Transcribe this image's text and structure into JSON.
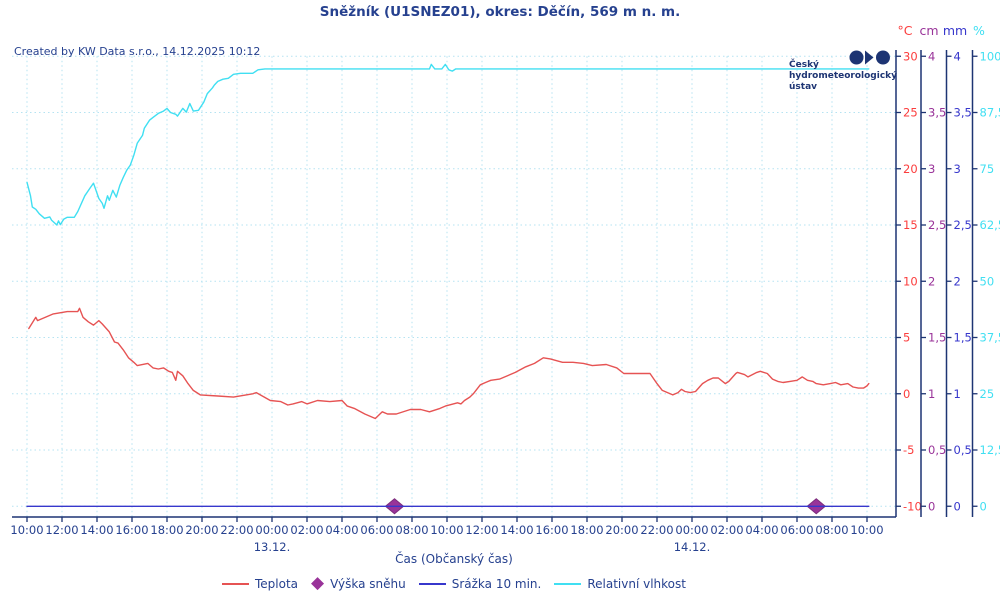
{
  "header": {
    "title": "Sněžník (U1SNEZ01), okres: Děčín, 569 m n. m.",
    "created": "Created by KW Data s.r.o., 14.12.2025 10:12",
    "logo_line1": "Český",
    "logo_line2": "hydrometeorologický",
    "logo_line3": "ústav"
  },
  "colors": {
    "navy_text": "#26418f",
    "navy_line": "#1d3473",
    "grid": "#b5e3f2",
    "temperature": "#e65353",
    "temperature_label": "#fb3d3d",
    "snow": "#993399",
    "snow_edge": "#7c2d7c",
    "precip": "#3737cc",
    "humidity": "#40dff2"
  },
  "right_axes": [
    {
      "unit": "°C",
      "tick_labels": [
        "30",
        "25",
        "20",
        "15",
        "10",
        "5",
        "0",
        "-5",
        "-10"
      ],
      "color": "#fb3d3d"
    },
    {
      "unit": "cm",
      "tick_labels": [
        "4",
        "3,5",
        "3",
        "2,5",
        "2",
        "1,5",
        "1",
        "0,5",
        "0"
      ],
      "color": "#993399"
    },
    {
      "unit": "mm",
      "tick_labels": [
        "4",
        "3,5",
        "3",
        "2,5",
        "2",
        "1,5",
        "1",
        "0,5",
        "0"
      ],
      "color": "#3737cc"
    },
    {
      "unit": "%",
      "tick_labels": [
        "100",
        "87,5",
        "75",
        "62,5",
        "50",
        "37,5",
        "25",
        "12,5",
        "0"
      ],
      "color": "#40dff2"
    }
  ],
  "xaxis": {
    "label": "Čas (Občanský čas)",
    "tick_labels": [
      "10:00",
      "12:00",
      "14:00",
      "16:00",
      "18:00",
      "20:00",
      "22:00",
      "00:00",
      "02:00",
      "04:00",
      "06:00",
      "08:00",
      "10:00",
      "12:00",
      "14:00",
      "16:00",
      "18:00",
      "20:00",
      "22:00",
      "00:00",
      "02:00",
      "04:00",
      "06:00",
      "08:00",
      "10:00"
    ],
    "day_labels": [
      {
        "text": "13.12.",
        "tick_index": 7
      },
      {
        "text": "14.12.",
        "tick_index": 19
      }
    ]
  },
  "legend": {
    "items": [
      {
        "label": "Teplota",
        "marker": "line",
        "color": "#e65353"
      },
      {
        "label": "Výška sněhu",
        "marker": "diamond",
        "color": "#993399"
      },
      {
        "label": "Srážka 10 min.",
        "marker": "line",
        "color": "#3737cc"
      },
      {
        "label": "Relativní vlhkost",
        "marker": "line",
        "color": "#40dff2"
      }
    ]
  },
  "chart_data": {
    "type": "line",
    "title": "Sněžník (U1SNEZ01), okres: Děčín, 569 m n. m.",
    "x_description": "hours after first tick (10:00 of first day); ticks every 2 h, two midnights at indices 7 (13.12.) and 19 (14.12.)",
    "x_range_hours": [
      0,
      48.2
    ],
    "grid": true,
    "legend_position": "bottom",
    "series": [
      {
        "name": "Teplota",
        "unit": "°C",
        "color": "#e65353",
        "type": "line",
        "axis_min": -10,
        "axis_max": 30,
        "points": [
          [
            0.1,
            5.8
          ],
          [
            0.5,
            6.8
          ],
          [
            0.6,
            6.5
          ],
          [
            1.5,
            7.1
          ],
          [
            2.3,
            7.3
          ],
          [
            2.9,
            7.3
          ],
          [
            3.0,
            7.6
          ],
          [
            3.2,
            6.8
          ],
          [
            3.5,
            6.4
          ],
          [
            3.8,
            6.1
          ],
          [
            4.1,
            6.5
          ],
          [
            4.3,
            6.2
          ],
          [
            4.7,
            5.5
          ],
          [
            5.0,
            4.6
          ],
          [
            5.2,
            4.5
          ],
          [
            5.5,
            3.9
          ],
          [
            5.8,
            3.2
          ],
          [
            6.1,
            2.8
          ],
          [
            6.3,
            2.5
          ],
          [
            6.9,
            2.7
          ],
          [
            7.2,
            2.3
          ],
          [
            7.5,
            2.2
          ],
          [
            7.8,
            2.3
          ],
          [
            8.1,
            2.0
          ],
          [
            8.3,
            1.9
          ],
          [
            8.5,
            1.2
          ],
          [
            8.6,
            2.0
          ],
          [
            8.9,
            1.6
          ],
          [
            9.2,
            0.9
          ],
          [
            9.5,
            0.3
          ],
          [
            9.9,
            -0.1
          ],
          [
            10.9,
            -0.2
          ],
          [
            11.8,
            -0.3
          ],
          [
            12.9,
            0.0
          ],
          [
            13.1,
            0.1
          ],
          [
            13.9,
            -0.6
          ],
          [
            14.5,
            -0.7
          ],
          [
            14.9,
            -1.0
          ],
          [
            15.2,
            -0.9
          ],
          [
            15.7,
            -0.7
          ],
          [
            16.0,
            -0.9
          ],
          [
            16.6,
            -0.6
          ],
          [
            17.3,
            -0.7
          ],
          [
            18.0,
            -0.6
          ],
          [
            18.3,
            -1.1
          ],
          [
            18.7,
            -1.3
          ],
          [
            19.3,
            -1.8
          ],
          [
            19.9,
            -2.2
          ],
          [
            20.3,
            -1.6
          ],
          [
            20.6,
            -1.8
          ],
          [
            21.1,
            -1.8
          ],
          [
            21.9,
            -1.4
          ],
          [
            22.5,
            -1.4
          ],
          [
            23.0,
            -1.6
          ],
          [
            23.6,
            -1.3
          ],
          [
            23.9,
            -1.1
          ],
          [
            24.6,
            -0.8
          ],
          [
            24.8,
            -0.9
          ],
          [
            25.0,
            -0.6
          ],
          [
            25.3,
            -0.3
          ],
          [
            25.5,
            0.0
          ],
          [
            25.9,
            0.8
          ],
          [
            26.2,
            1.0
          ],
          [
            26.5,
            1.2
          ],
          [
            27.0,
            1.3
          ],
          [
            27.3,
            1.5
          ],
          [
            27.9,
            1.9
          ],
          [
            28.5,
            2.4
          ],
          [
            29.0,
            2.7
          ],
          [
            29.5,
            3.2
          ],
          [
            29.9,
            3.1
          ],
          [
            30.6,
            2.8
          ],
          [
            31.2,
            2.8
          ],
          [
            31.8,
            2.7
          ],
          [
            32.3,
            2.5
          ],
          [
            33.1,
            2.6
          ],
          [
            33.7,
            2.3
          ],
          [
            34.1,
            1.8
          ],
          [
            34.5,
            1.8
          ],
          [
            35.6,
            1.8
          ],
          [
            36.0,
            0.9
          ],
          [
            36.3,
            0.3
          ],
          [
            36.9,
            -0.1
          ],
          [
            37.2,
            0.1
          ],
          [
            37.4,
            0.4
          ],
          [
            37.6,
            0.2
          ],
          [
            37.9,
            0.1
          ],
          [
            38.2,
            0.2
          ],
          [
            38.6,
            0.9
          ],
          [
            38.9,
            1.2
          ],
          [
            39.2,
            1.4
          ],
          [
            39.5,
            1.4
          ],
          [
            39.9,
            0.9
          ],
          [
            40.1,
            1.1
          ],
          [
            40.5,
            1.8
          ],
          [
            40.6,
            1.9
          ],
          [
            41.0,
            1.7
          ],
          [
            41.2,
            1.5
          ],
          [
            41.7,
            1.9
          ],
          [
            41.9,
            2.0
          ],
          [
            42.3,
            1.8
          ],
          [
            42.6,
            1.3
          ],
          [
            42.9,
            1.1
          ],
          [
            43.2,
            1.0
          ],
          [
            43.6,
            1.1
          ],
          [
            44.0,
            1.2
          ],
          [
            44.3,
            1.5
          ],
          [
            44.6,
            1.2
          ],
          [
            44.9,
            1.1
          ],
          [
            45.1,
            0.9
          ],
          [
            45.5,
            0.8
          ],
          [
            45.9,
            0.9
          ],
          [
            46.2,
            1.0
          ],
          [
            46.5,
            0.8
          ],
          [
            46.9,
            0.9
          ],
          [
            47.2,
            0.6
          ],
          [
            47.5,
            0.5
          ],
          [
            47.8,
            0.5
          ],
          [
            48.0,
            0.7
          ],
          [
            48.1,
            0.9
          ]
        ]
      },
      {
        "name": "Výška sněhu",
        "unit": "cm",
        "color": "#993399",
        "type": "scatter-diamond",
        "axis_min": 0,
        "axis_max": 4,
        "points": [
          [
            21.0,
            0
          ],
          [
            45.1,
            0
          ]
        ]
      },
      {
        "name": "Srážka 10 min.",
        "unit": "mm",
        "color": "#3737cc",
        "type": "line",
        "axis_min": 0,
        "axis_max": 4,
        "points": [
          [
            0.0,
            0
          ],
          [
            48.1,
            0
          ]
        ]
      },
      {
        "name": "Relativní vlhkost",
        "unit": "%",
        "color": "#40dff2",
        "type": "line",
        "axis_min": 0,
        "axis_max": 100,
        "points": [
          [
            0.0,
            72
          ],
          [
            0.2,
            69
          ],
          [
            0.3,
            66.5
          ],
          [
            0.5,
            66
          ],
          [
            0.7,
            65
          ],
          [
            1.0,
            64
          ],
          [
            1.3,
            64.3
          ],
          [
            1.4,
            63.6
          ],
          [
            1.7,
            62.5
          ],
          [
            1.8,
            63.4
          ],
          [
            1.9,
            62.6
          ],
          [
            2.1,
            63.8
          ],
          [
            2.3,
            64.2
          ],
          [
            2.7,
            64.2
          ],
          [
            2.9,
            65.5
          ],
          [
            3.3,
            69
          ],
          [
            3.6,
            70.7
          ],
          [
            3.8,
            71.8
          ],
          [
            4.1,
            68.4
          ],
          [
            4.3,
            67.3
          ],
          [
            4.4,
            66.2
          ],
          [
            4.6,
            69
          ],
          [
            4.7,
            68
          ],
          [
            4.9,
            70.2
          ],
          [
            5.1,
            68.7
          ],
          [
            5.3,
            71.3
          ],
          [
            5.5,
            73.1
          ],
          [
            5.7,
            74.7
          ],
          [
            5.9,
            75.8
          ],
          [
            6.1,
            78
          ],
          [
            6.3,
            80.7
          ],
          [
            6.6,
            82.4
          ],
          [
            6.7,
            84
          ],
          [
            7.0,
            85.8
          ],
          [
            7.2,
            86.4
          ],
          [
            7.5,
            87.3
          ],
          [
            7.8,
            87.8
          ],
          [
            8.0,
            88.4
          ],
          [
            8.2,
            87.5
          ],
          [
            8.5,
            87.1
          ],
          [
            8.6,
            86.7
          ],
          [
            8.9,
            88.4
          ],
          [
            9.1,
            87.6
          ],
          [
            9.3,
            89.5
          ],
          [
            9.5,
            87.8
          ],
          [
            9.8,
            88
          ],
          [
            10.1,
            89.8
          ],
          [
            10.3,
            91.7
          ],
          [
            10.6,
            93
          ],
          [
            10.7,
            93.6
          ],
          [
            10.9,
            94.4
          ],
          [
            11.2,
            94.9
          ],
          [
            11.5,
            95.1
          ],
          [
            11.8,
            96
          ],
          [
            12.2,
            96.2
          ],
          [
            12.9,
            96.2
          ],
          [
            13.2,
            97
          ],
          [
            13.6,
            97.2
          ],
          [
            23.0,
            97.2
          ],
          [
            23.1,
            98.2
          ],
          [
            23.3,
            97.2
          ],
          [
            23.7,
            97.2
          ],
          [
            23.9,
            98.2
          ],
          [
            24.1,
            97.0
          ],
          [
            24.3,
            96.7
          ],
          [
            24.5,
            97.2
          ],
          [
            48.1,
            97.2
          ]
        ]
      }
    ]
  }
}
